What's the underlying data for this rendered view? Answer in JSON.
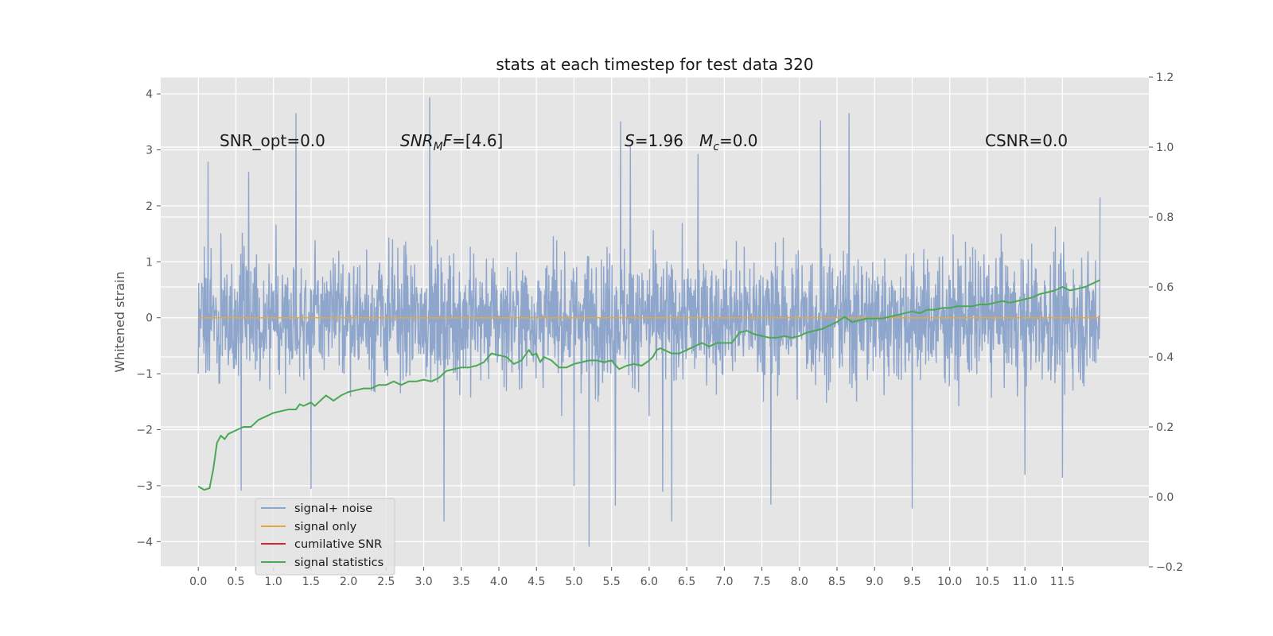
{
  "chart_data": {
    "type": "line",
    "title": "stats at each timestep for test data 320",
    "ylabel": "Whitened strain",
    "xlim": [
      -0.5,
      12.65
    ],
    "ylim_left": [
      -4.45,
      4.3
    ],
    "ylim_right": [
      -0.2,
      1.2
    ],
    "x_ticks": [
      "0.0",
      "0.5",
      "1.0",
      "1.5",
      "2.0",
      "2.5",
      "3.0",
      "3.5",
      "4.0",
      "4.5",
      "5.0",
      "5.5",
      "6.0",
      "6.5",
      "7.0",
      "7.5",
      "8.0",
      "8.5",
      "9.0",
      "9.5",
      "10.0",
      "10.5",
      "11.0",
      "11.5"
    ],
    "y_ticks_left": [
      "4",
      "3",
      "2",
      "1",
      "0",
      "−1",
      "−2",
      "−3",
      "−4"
    ],
    "y_ticks_right": [
      "1.2",
      "1.0",
      "0.8",
      "0.6",
      "0.4",
      "0.2",
      "0.0",
      "−0.2"
    ],
    "grid": true,
    "legend_position": "lower-left",
    "annotations": {
      "snr_opt": "SNR_opt=0.0",
      "snr_mf_var": "SNR",
      "snr_mf_sub": "M",
      "snr_mf_var2": "F",
      "snr_mf_value": "=[4.6]",
      "s_var": "S",
      "s_value": "=1.96",
      "mc_var": "M",
      "mc_sub": "c",
      "mc_value": "=0.0",
      "csnr": "CSNR=0.0"
    },
    "series": [
      {
        "name": "signal+ noise",
        "axis": "left",
        "color": "#8ea5cc",
        "description_stats": {
          "x_start": 0.0,
          "x_end": 12.0,
          "typical_range": [
            -2.0,
            2.0
          ],
          "max": 3.93,
          "min": -4.08
        },
        "spikes": [
          [
            1.3,
            3.65
          ],
          [
            3.08,
            3.93
          ],
          [
            8.28,
            3.52
          ],
          [
            8.66,
            3.65
          ],
          [
            5.2,
            -4.08
          ],
          [
            3.27,
            -3.63
          ],
          [
            6.3,
            -3.63
          ],
          [
            9.5,
            -3.4
          ],
          [
            7.62,
            -3.33
          ],
          [
            0.57,
            -3.08
          ],
          [
            1.5,
            -3.05
          ],
          [
            5.55,
            -3.35
          ],
          [
            6.18,
            -3.1
          ],
          [
            5.0,
            -3.0
          ],
          [
            11.5,
            -2.85
          ],
          [
            11.0,
            -2.8
          ],
          [
            0.13,
            2.78
          ],
          [
            0.67,
            2.6
          ],
          [
            5.62,
            3.5
          ],
          [
            5.75,
            3.05
          ],
          [
            6.65,
            2.92
          ],
          [
            12.0,
            2.15
          ],
          [
            6.0,
            1.25
          ],
          [
            6.0,
            -1.75
          ]
        ]
      },
      {
        "name": "signal only",
        "axis": "left",
        "color": "#e8a640",
        "x": [
          0.0,
          12.0
        ],
        "y": [
          0.0,
          0.0
        ]
      },
      {
        "name": "cumilative SNR",
        "axis": "left",
        "color": "#d62728",
        "x": [],
        "y": []
      },
      {
        "name": "signal statistics",
        "axis": "right",
        "color": "#4aa855",
        "x": [
          0.0,
          0.08,
          0.15,
          0.2,
          0.25,
          0.3,
          0.35,
          0.4,
          0.5,
          0.6,
          0.7,
          0.8,
          0.9,
          1.0,
          1.1,
          1.2,
          1.3,
          1.35,
          1.4,
          1.5,
          1.55,
          1.6,
          1.7,
          1.8,
          1.9,
          2.0,
          2.1,
          2.2,
          2.3,
          2.4,
          2.5,
          2.6,
          2.7,
          2.8,
          2.9,
          3.0,
          3.1,
          3.2,
          3.3,
          3.4,
          3.5,
          3.6,
          3.7,
          3.8,
          3.9,
          4.0,
          4.1,
          4.2,
          4.3,
          4.4,
          4.45,
          4.5,
          4.55,
          4.6,
          4.7,
          4.8,
          4.9,
          5.0,
          5.1,
          5.2,
          5.3,
          5.4,
          5.5,
          5.6,
          5.7,
          5.8,
          5.9,
          6.0,
          6.05,
          6.1,
          6.15,
          6.2,
          6.3,
          6.4,
          6.5,
          6.6,
          6.7,
          6.8,
          6.9,
          7.0,
          7.1,
          7.2,
          7.3,
          7.4,
          7.5,
          7.6,
          7.7,
          7.8,
          7.9,
          8.0,
          8.1,
          8.2,
          8.3,
          8.4,
          8.5,
          8.6,
          8.7,
          8.8,
          8.9,
          9.0,
          9.1,
          9.2,
          9.3,
          9.4,
          9.5,
          9.6,
          9.7,
          9.8,
          9.9,
          10.0,
          10.1,
          10.2,
          10.3,
          10.4,
          10.5,
          10.6,
          10.7,
          10.8,
          10.9,
          11.0,
          11.1,
          11.2,
          11.3,
          11.4,
          11.5,
          11.6,
          11.7,
          11.8,
          11.9,
          12.0
        ],
        "y": [
          0.03,
          0.02,
          0.025,
          0.08,
          0.155,
          0.175,
          0.165,
          0.18,
          0.19,
          0.2,
          0.2,
          0.22,
          0.23,
          0.24,
          0.245,
          0.25,
          0.25,
          0.265,
          0.26,
          0.27,
          0.26,
          0.27,
          0.29,
          0.275,
          0.29,
          0.3,
          0.305,
          0.31,
          0.31,
          0.32,
          0.32,
          0.33,
          0.32,
          0.33,
          0.33,
          0.335,
          0.33,
          0.34,
          0.36,
          0.365,
          0.37,
          0.37,
          0.375,
          0.385,
          0.41,
          0.405,
          0.4,
          0.38,
          0.39,
          0.42,
          0.405,
          0.41,
          0.385,
          0.4,
          0.39,
          0.37,
          0.37,
          0.38,
          0.385,
          0.39,
          0.39,
          0.385,
          0.39,
          0.365,
          0.375,
          0.38,
          0.375,
          0.39,
          0.4,
          0.42,
          0.425,
          0.42,
          0.41,
          0.41,
          0.42,
          0.43,
          0.44,
          0.43,
          0.44,
          0.44,
          0.44,
          0.47,
          0.475,
          0.465,
          0.46,
          0.455,
          0.455,
          0.46,
          0.455,
          0.46,
          0.47,
          0.475,
          0.48,
          0.49,
          0.5,
          0.515,
          0.5,
          0.505,
          0.51,
          0.51,
          0.51,
          0.515,
          0.52,
          0.525,
          0.53,
          0.525,
          0.535,
          0.535,
          0.54,
          0.54,
          0.545,
          0.545,
          0.545,
          0.55,
          0.55,
          0.555,
          0.56,
          0.555,
          0.56,
          0.565,
          0.57,
          0.58,
          0.585,
          0.59,
          0.6,
          0.59,
          0.595,
          0.6,
          0.61,
          0.62
        ]
      }
    ]
  }
}
